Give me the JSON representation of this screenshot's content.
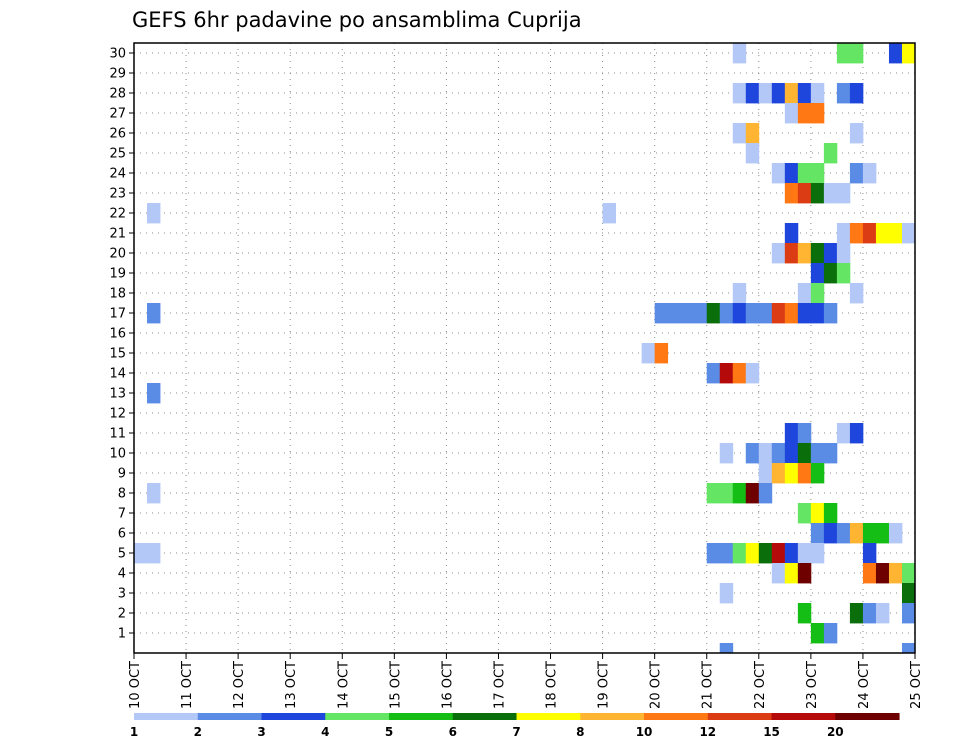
{
  "chart_data": {
    "type": "heatmap",
    "title": "GEFS 6hr padavine po ansamblima Cuprija",
    "xlabel": "",
    "ylabel": "",
    "x_ticks": [
      "10 OCT",
      "11 OCT",
      "12 OCT",
      "13 OCT",
      "14 OCT",
      "15 OCT",
      "16 OCT",
      "17 OCT",
      "18 OCT",
      "19 OCT",
      "20 OCT",
      "21 OCT",
      "22 OCT",
      "23 OCT",
      "24 OCT",
      "25 OCT"
    ],
    "y_ticks": [
      1,
      2,
      3,
      4,
      5,
      6,
      7,
      8,
      9,
      10,
      11,
      12,
      13,
      14,
      15,
      16,
      17,
      18,
      19,
      20,
      21,
      22,
      23,
      24,
      25,
      26,
      27,
      28,
      29,
      30
    ],
    "x_range": [
      "10 OCT 00Z",
      "25 OCT 00Z"
    ],
    "time_step_hours": 6,
    "y_range": [
      0,
      30
    ],
    "grid": true,
    "legend_position": "bottom",
    "colorbar": {
      "colors": [
        "#b4c8f8",
        "#5a8ce6",
        "#1e46dc",
        "#64e664",
        "#14be14",
        "#0a6e0a",
        "#ffff00",
        "#ffb432",
        "#ff7814",
        "#dc3c14",
        "#b40a0a",
        "#6e0000"
      ],
      "labels": [
        "1",
        "2",
        "3",
        "4",
        "5",
        "6",
        "7",
        "8",
        "10",
        "12",
        "15",
        "20"
      ]
    },
    "cells_note": "[member, step_index, class]: step_index = number of 6h steps after 10 OCT 00Z; class is colorbar bin (1..12)",
    "cells": [
      [
        30,
        46,
        1
      ],
      [
        30,
        54,
        4
      ],
      [
        30,
        55,
        4
      ],
      [
        30,
        58,
        3
      ],
      [
        30,
        59,
        7
      ],
      [
        30,
        60,
        1
      ],
      [
        30,
        68,
        9
      ],
      [
        30,
        69,
        4
      ],
      [
        30,
        75,
        2
      ],
      [
        30,
        76,
        1
      ],
      [
        30,
        78,
        2
      ],
      [
        30,
        79,
        2
      ],
      [
        29,
        74,
        2
      ],
      [
        29,
        75,
        9
      ],
      [
        28,
        46,
        1
      ],
      [
        28,
        47,
        3
      ],
      [
        28,
        48,
        1
      ],
      [
        28,
        49,
        3
      ],
      [
        28,
        50,
        8
      ],
      [
        28,
        51,
        3
      ],
      [
        28,
        52,
        1
      ],
      [
        28,
        54,
        2
      ],
      [
        28,
        55,
        3
      ],
      [
        27,
        50,
        1
      ],
      [
        27,
        51,
        9
      ],
      [
        27,
        52,
        9
      ],
      [
        27,
        68,
        1
      ],
      [
        27,
        69,
        2
      ],
      [
        27,
        70,
        1
      ],
      [
        27,
        71,
        1
      ],
      [
        26,
        46,
        1
      ],
      [
        26,
        47,
        8
      ],
      [
        26,
        55,
        1
      ],
      [
        26,
        71,
        3
      ],
      [
        26,
        72,
        5
      ],
      [
        26,
        73,
        10
      ],
      [
        26,
        74,
        11
      ],
      [
        26,
        75,
        12
      ],
      [
        26,
        76,
        10
      ],
      [
        26,
        77,
        7
      ],
      [
        26,
        78,
        1
      ],
      [
        26,
        80,
        1
      ],
      [
        26,
        81,
        11
      ],
      [
        26,
        82,
        7
      ],
      [
        26,
        83,
        3
      ],
      [
        25,
        47,
        1
      ],
      [
        25,
        53,
        4
      ],
      [
        25,
        62,
        4
      ],
      [
        25,
        74,
        1
      ],
      [
        25,
        75,
        1
      ],
      [
        24,
        49,
        1
      ],
      [
        24,
        50,
        3
      ],
      [
        24,
        51,
        4
      ],
      [
        24,
        52,
        4
      ],
      [
        24,
        55,
        2
      ],
      [
        24,
        56,
        1
      ],
      [
        23,
        50,
        9
      ],
      [
        23,
        51,
        10
      ],
      [
        23,
        52,
        6
      ],
      [
        23,
        53,
        1
      ],
      [
        23,
        54,
        1
      ],
      [
        22,
        1,
        1
      ],
      [
        22,
        36,
        1
      ],
      [
        21,
        50,
        3
      ],
      [
        21,
        54,
        1
      ],
      [
        21,
        55,
        9
      ],
      [
        21,
        56,
        10
      ],
      [
        21,
        57,
        7
      ],
      [
        21,
        58,
        7
      ],
      [
        21,
        59,
        1
      ],
      [
        21,
        60,
        8
      ],
      [
        21,
        61,
        3
      ],
      [
        21,
        62,
        3
      ],
      [
        21,
        63,
        3
      ],
      [
        21,
        65,
        1
      ],
      [
        21,
        66,
        2
      ],
      [
        21,
        67,
        1
      ],
      [
        21,
        68,
        5
      ],
      [
        21,
        71,
        1
      ],
      [
        21,
        83,
        7
      ],
      [
        21,
        84,
        3
      ],
      [
        21,
        85,
        1
      ],
      [
        21,
        86,
        1
      ],
      [
        20,
        49,
        1
      ],
      [
        20,
        50,
        10
      ],
      [
        20,
        51,
        8
      ],
      [
        20,
        52,
        6
      ],
      [
        20,
        53,
        3
      ],
      [
        20,
        54,
        1
      ],
      [
        20,
        83,
        7
      ],
      [
        20,
        84,
        4
      ],
      [
        20,
        85,
        2
      ],
      [
        19,
        52,
        3
      ],
      [
        19,
        53,
        6
      ],
      [
        19,
        54,
        4
      ],
      [
        18,
        46,
        1
      ],
      [
        18,
        51,
        1
      ],
      [
        18,
        52,
        4
      ],
      [
        18,
        55,
        1
      ],
      [
        17,
        1,
        2
      ],
      [
        17,
        40,
        2
      ],
      [
        17,
        41,
        2
      ],
      [
        17,
        42,
        2
      ],
      [
        17,
        43,
        2
      ],
      [
        17,
        44,
        6
      ],
      [
        17,
        45,
        2
      ],
      [
        17,
        46,
        3
      ],
      [
        17,
        47,
        2
      ],
      [
        17,
        48,
        2
      ],
      [
        17,
        49,
        10
      ],
      [
        17,
        50,
        9
      ],
      [
        17,
        51,
        3
      ],
      [
        17,
        52,
        3
      ],
      [
        17,
        53,
        2
      ],
      [
        17,
        86,
        2
      ],
      [
        16,
        74,
        1
      ],
      [
        16,
        76,
        1
      ],
      [
        15,
        39,
        1
      ],
      [
        15,
        40,
        9
      ],
      [
        14,
        44,
        2
      ],
      [
        14,
        45,
        11
      ],
      [
        14,
        46,
        9
      ],
      [
        14,
        47,
        1
      ],
      [
        14,
        68,
        1
      ],
      [
        13,
        1,
        2
      ],
      [
        12,
        62,
        2
      ],
      [
        12,
        63,
        5
      ],
      [
        12,
        64,
        6
      ],
      [
        12,
        65,
        4
      ],
      [
        11,
        50,
        3
      ],
      [
        11,
        51,
        2
      ],
      [
        11,
        54,
        1
      ],
      [
        11,
        55,
        3
      ],
      [
        10,
        45,
        1
      ],
      [
        10,
        47,
        2
      ],
      [
        10,
        48,
        1
      ],
      [
        10,
        49,
        2
      ],
      [
        10,
        50,
        3
      ],
      [
        10,
        51,
        6
      ],
      [
        10,
        52,
        2
      ],
      [
        10,
        53,
        2
      ],
      [
        10,
        62,
        2
      ],
      [
        9,
        48,
        1
      ],
      [
        9,
        49,
        8
      ],
      [
        9,
        50,
        7
      ],
      [
        9,
        51,
        9
      ],
      [
        9,
        52,
        5
      ],
      [
        8,
        1,
        1
      ],
      [
        8,
        44,
        4
      ],
      [
        8,
        45,
        4
      ],
      [
        8,
        46,
        5
      ],
      [
        8,
        47,
        12
      ],
      [
        8,
        48,
        2
      ],
      [
        8,
        85,
        4
      ],
      [
        8,
        86,
        5
      ],
      [
        8,
        87,
        8
      ],
      [
        7,
        51,
        4
      ],
      [
        7,
        52,
        7
      ],
      [
        7,
        53,
        5
      ],
      [
        7,
        63,
        1
      ],
      [
        7,
        64,
        4
      ],
      [
        7,
        65,
        2
      ],
      [
        7,
        67,
        1
      ],
      [
        7,
        68,
        4
      ],
      [
        7,
        69,
        3
      ],
      [
        6,
        52,
        2
      ],
      [
        6,
        53,
        3
      ],
      [
        6,
        54,
        2
      ],
      [
        6,
        55,
        8
      ],
      [
        6,
        56,
        5
      ],
      [
        6,
        57,
        5
      ],
      [
        6,
        58,
        1
      ],
      [
        6,
        69,
        3
      ],
      [
        6,
        70,
        1
      ],
      [
        6,
        71,
        3
      ],
      [
        6,
        73,
        2
      ],
      [
        6,
        74,
        2
      ],
      [
        6,
        75,
        1
      ],
      [
        5,
        0,
        1
      ],
      [
        5,
        1,
        1
      ],
      [
        5,
        44,
        2
      ],
      [
        5,
        45,
        2
      ],
      [
        5,
        46,
        4
      ],
      [
        5,
        47,
        7
      ],
      [
        5,
        48,
        6
      ],
      [
        5,
        49,
        11
      ],
      [
        5,
        50,
        3
      ],
      [
        5,
        51,
        1
      ],
      [
        5,
        52,
        1
      ],
      [
        5,
        56,
        3
      ],
      [
        5,
        71,
        1
      ],
      [
        5,
        72,
        9
      ],
      [
        5,
        73,
        8
      ],
      [
        5,
        74,
        8
      ],
      [
        5,
        75,
        7
      ],
      [
        5,
        76,
        1
      ],
      [
        5,
        79,
        3
      ],
      [
        4,
        49,
        1
      ],
      [
        4,
        50,
        7
      ],
      [
        4,
        51,
        12
      ],
      [
        4,
        56,
        9
      ],
      [
        4,
        57,
        12
      ],
      [
        4,
        58,
        8
      ],
      [
        4,
        59,
        4
      ],
      [
        3,
        45,
        1
      ],
      [
        3,
        59,
        6
      ],
      [
        3,
        60,
        6
      ],
      [
        3,
        61,
        8
      ],
      [
        3,
        62,
        1
      ],
      [
        3,
        63,
        1
      ],
      [
        3,
        64,
        1
      ],
      [
        2,
        51,
        5
      ],
      [
        2,
        55,
        6
      ],
      [
        2,
        56,
        2
      ],
      [
        2,
        57,
        1
      ],
      [
        2,
        59,
        2
      ],
      [
        2,
        60,
        3
      ],
      [
        2,
        61,
        1
      ],
      [
        2,
        86,
        2
      ],
      [
        1,
        52,
        5
      ],
      [
        1,
        53,
        2
      ],
      [
        1,
        60,
        1
      ],
      [
        1,
        69,
        5
      ],
      [
        1,
        70,
        4
      ],
      [
        1,
        71,
        2
      ],
      [
        0,
        45,
        2
      ],
      [
        0,
        59,
        2
      ],
      [
        0,
        60,
        1
      ],
      [
        0,
        69,
        9
      ],
      [
        0,
        70,
        3
      ],
      [
        0,
        71,
        1
      ],
      [
        0,
        72,
        2
      ],
      [
        0,
        73,
        8
      ],
      [
        0,
        74,
        10
      ],
      [
        0,
        75,
        1
      ]
    ]
  }
}
